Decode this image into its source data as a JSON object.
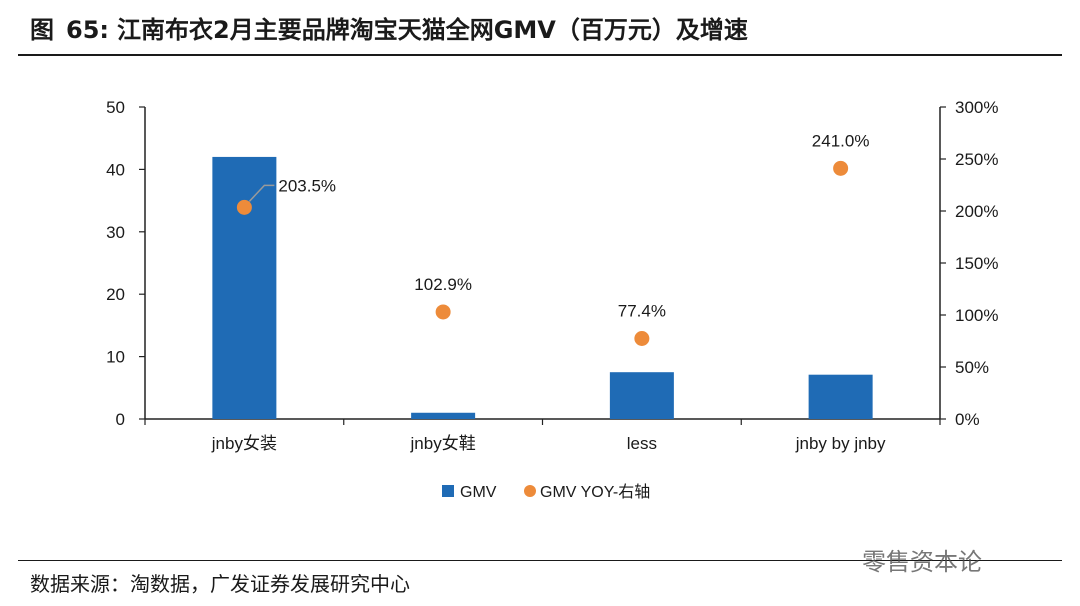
{
  "header": {
    "figure_label": "图",
    "figure_number": "65:",
    "title_text": "江南布衣2月主要品牌淘宝天猫全网GMV（百万元）及增速"
  },
  "footer": {
    "source": "数据来源：淘数据，广发证券发展研究中心",
    "watermark": "零售资本论"
  },
  "chart_data": {
    "type": "bar",
    "categories": [
      "jnby女装",
      "jnby女鞋",
      "less",
      "jnby by jnby"
    ],
    "series": [
      {
        "name": "GMV",
        "type": "bar",
        "axis": "left",
        "values": [
          42.0,
          1.0,
          7.5,
          7.1
        ],
        "color": "#1f6bb5"
      },
      {
        "name": "GMV YOY-右轴",
        "type": "scatter",
        "axis": "right",
        "values": [
          203.5,
          102.9,
          77.4,
          241.0
        ],
        "labels": [
          "203.5%",
          "102.9%",
          "77.4%",
          "241.0%"
        ],
        "color": "#ed8b3a"
      }
    ],
    "y_left": {
      "ylim": [
        0,
        50
      ],
      "ticks": [
        "0",
        "10",
        "20",
        "30",
        "40",
        "50"
      ]
    },
    "y_right": {
      "ylim": [
        0,
        300
      ],
      "ticks": [
        "0%",
        "50%",
        "100%",
        "150%",
        "200%",
        "250%",
        "300%"
      ]
    },
    "legend": {
      "placement": "bottom-center",
      "entries": [
        "GMV",
        "GMV YOY-右轴"
      ]
    },
    "grid": false
  }
}
